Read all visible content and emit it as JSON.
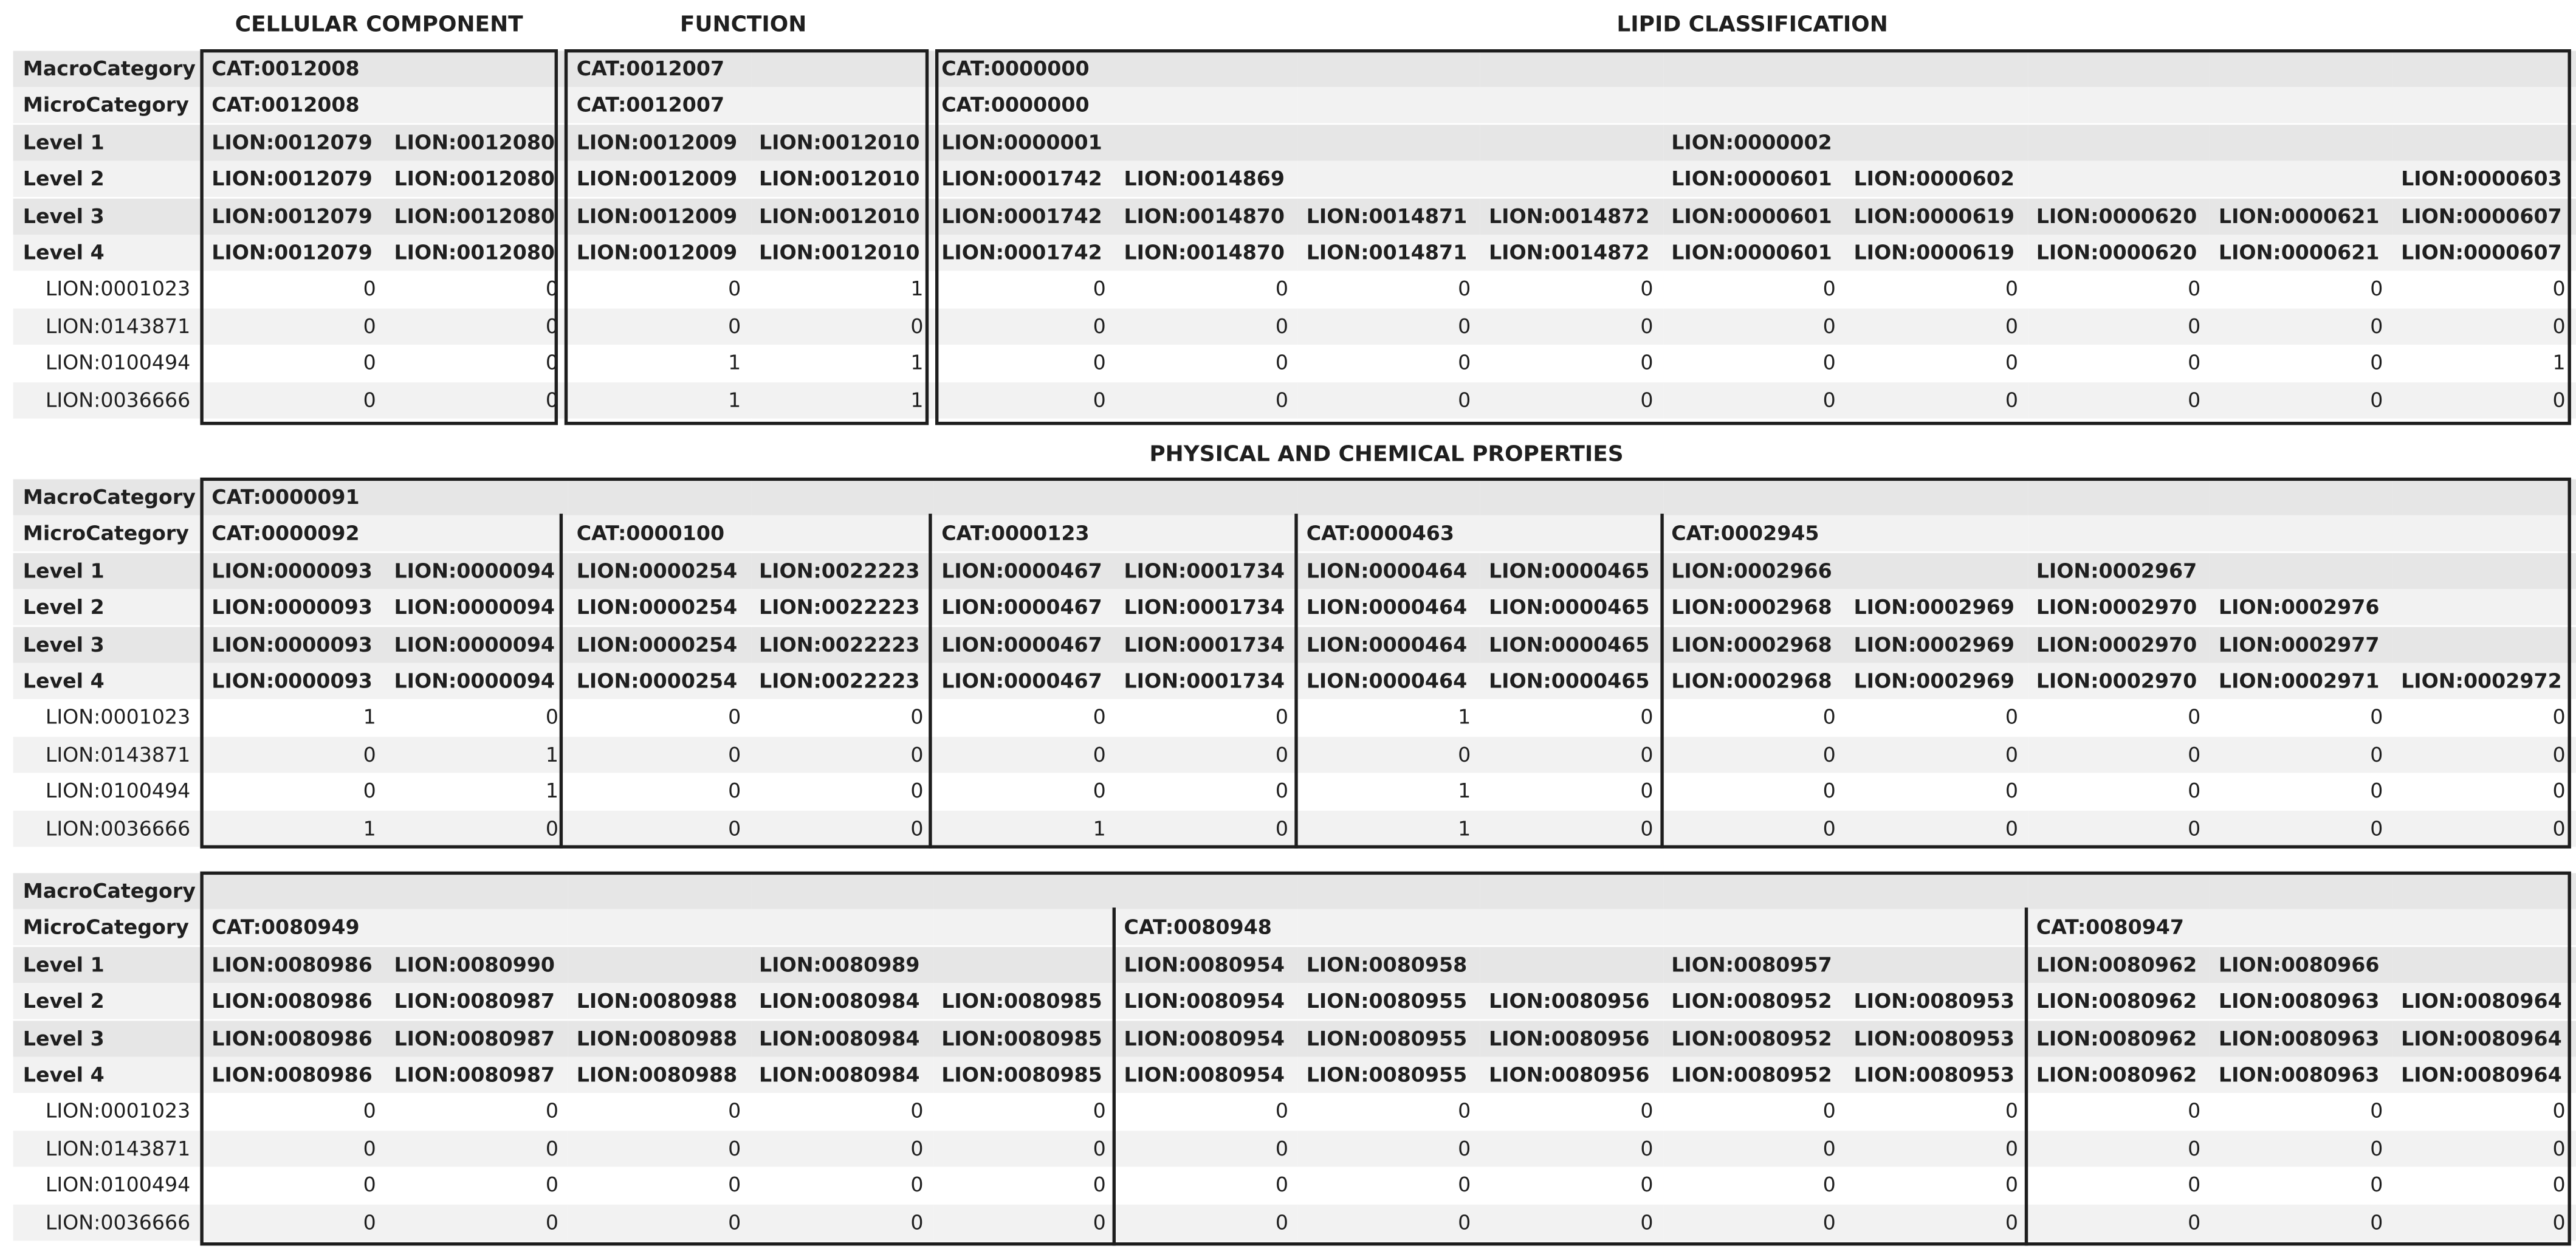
{
  "section_titles": {
    "cellular_component": "CELLULAR COMPONENT",
    "function": "FUNCTION",
    "lipid_classification": "LIPID CLASSIFICATION",
    "physical_chemical": "PHYSICAL AND CHEMICAL PROPERTIES"
  },
  "row_labels": {
    "header": [
      "MacroCategory",
      "MicroCategory",
      "Level 1",
      "Level 2",
      "Level 3",
      "Level 4"
    ],
    "lipids": [
      "LION:0001023",
      "LION:0143871",
      "LION:0100494",
      "LION:0036666"
    ]
  },
  "tables": [
    {
      "rows": [
        [
          "CAT:0012008",
          "",
          "CAT:0012007",
          "",
          "CAT:0000000",
          "",
          "",
          "",
          "",
          "",
          "",
          "",
          ""
        ],
        [
          "CAT:0012008",
          "",
          "CAT:0012007",
          "",
          "CAT:0000000",
          "",
          "",
          "",
          "",
          "",
          "",
          "",
          ""
        ],
        [
          "LION:0012079",
          "LION:0012080",
          "LION:0012009",
          "LION:0012010",
          "LION:0000001",
          "",
          "",
          "",
          "LION:0000002",
          "",
          "",
          "",
          ""
        ],
        [
          "LION:0012079",
          "LION:0012080",
          "LION:0012009",
          "LION:0012010",
          "LION:0001742",
          "LION:0014869",
          "",
          "",
          "LION:0000601",
          "LION:0000602",
          "",
          "",
          "LION:0000603"
        ],
        [
          "LION:0012079",
          "LION:0012080",
          "LION:0012009",
          "LION:0012010",
          "LION:0001742",
          "LION:0014870",
          "LION:0014871",
          "LION:0014872",
          "LION:0000601",
          "LION:0000619",
          "LION:0000620",
          "LION:0000621",
          "LION:0000607"
        ],
        [
          "LION:0012079",
          "LION:0012080",
          "LION:0012009",
          "LION:0012010",
          "LION:0001742",
          "LION:0014870",
          "LION:0014871",
          "LION:0014872",
          "LION:0000601",
          "LION:0000619",
          "LION:0000620",
          "LION:0000621",
          "LION:0000607"
        ]
      ],
      "values": [
        [
          "0",
          "0",
          "0",
          "1",
          "0",
          "0",
          "0",
          "0",
          "0",
          "0",
          "0",
          "0",
          "0"
        ],
        [
          "0",
          "0",
          "0",
          "0",
          "0",
          "0",
          "0",
          "0",
          "0",
          "0",
          "0",
          "0",
          "0"
        ],
        [
          "0",
          "0",
          "1",
          "1",
          "0",
          "0",
          "0",
          "0",
          "0",
          "0",
          "0",
          "0",
          "1"
        ],
        [
          "0",
          "0",
          "1",
          "1",
          "0",
          "0",
          "0",
          "0",
          "0",
          "0",
          "0",
          "0",
          "0"
        ]
      ]
    },
    {
      "rows": [
        [
          "CAT:0000091",
          "",
          "",
          "",
          "",
          "",
          "",
          "",
          "",
          "",
          "",
          "",
          ""
        ],
        [
          "CAT:0000092",
          "",
          "CAT:0000100",
          "",
          "CAT:0000123",
          "",
          "CAT:0000463",
          "",
          "CAT:0002945",
          "",
          "",
          "",
          ""
        ],
        [
          "LION:0000093",
          "LION:0000094",
          "LION:0000254",
          "LION:0022223",
          "LION:0000467",
          "LION:0001734",
          "LION:0000464",
          "LION:0000465",
          "LION:0002966",
          "",
          "LION:0002967",
          "",
          ""
        ],
        [
          "LION:0000093",
          "LION:0000094",
          "LION:0000254",
          "LION:0022223",
          "LION:0000467",
          "LION:0001734",
          "LION:0000464",
          "LION:0000465",
          "LION:0002968",
          "LION:0002969",
          "LION:0002970",
          "LION:0002976",
          ""
        ],
        [
          "LION:0000093",
          "LION:0000094",
          "LION:0000254",
          "LION:0022223",
          "LION:0000467",
          "LION:0001734",
          "LION:0000464",
          "LION:0000465",
          "LION:0002968",
          "LION:0002969",
          "LION:0002970",
          "LION:0002977",
          ""
        ],
        [
          "LION:0000093",
          "LION:0000094",
          "LION:0000254",
          "LION:0022223",
          "LION:0000467",
          "LION:0001734",
          "LION:0000464",
          "LION:0000465",
          "LION:0002968",
          "LION:0002969",
          "LION:0002970",
          "LION:0002971",
          "LION:0002972"
        ]
      ],
      "values": [
        [
          "1",
          "0",
          "0",
          "0",
          "0",
          "0",
          "1",
          "0",
          "0",
          "0",
          "0",
          "0",
          "0"
        ],
        [
          "0",
          "1",
          "0",
          "0",
          "0",
          "0",
          "0",
          "0",
          "0",
          "0",
          "0",
          "0",
          "0"
        ],
        [
          "0",
          "1",
          "0",
          "0",
          "0",
          "0",
          "1",
          "0",
          "0",
          "0",
          "0",
          "0",
          "0"
        ],
        [
          "1",
          "0",
          "0",
          "0",
          "1",
          "0",
          "1",
          "0",
          "0",
          "0",
          "0",
          "0",
          "0"
        ]
      ]
    },
    {
      "rows": [
        [
          "",
          "",
          "",
          "",
          "",
          "",
          "",
          "",
          "",
          "",
          "",
          "",
          ""
        ],
        [
          "CAT:0080949",
          "",
          "",
          "",
          "",
          "CAT:0080948",
          "",
          "",
          "",
          "",
          "CAT:0080947",
          "",
          ""
        ],
        [
          "LION:0080986",
          "LION:0080990",
          "",
          "LION:0080989",
          "",
          "LION:0080954",
          "LION:0080958",
          "",
          "LION:0080957",
          "",
          "LION:0080962",
          "LION:0080966",
          ""
        ],
        [
          "LION:0080986",
          "LION:0080987",
          "LION:0080988",
          "LION:0080984",
          "LION:0080985",
          "LION:0080954",
          "LION:0080955",
          "LION:0080956",
          "LION:0080952",
          "LION:0080953",
          "LION:0080962",
          "LION:0080963",
          "LION:0080964"
        ],
        [
          "LION:0080986",
          "LION:0080987",
          "LION:0080988",
          "LION:0080984",
          "LION:0080985",
          "LION:0080954",
          "LION:0080955",
          "LION:0080956",
          "LION:0080952",
          "LION:0080953",
          "LION:0080962",
          "LION:0080963",
          "LION:0080964"
        ],
        [
          "LION:0080986",
          "LION:0080987",
          "LION:0080988",
          "LION:0080984",
          "LION:0080985",
          "LION:0080954",
          "LION:0080955",
          "LION:0080956",
          "LION:0080952",
          "LION:0080953",
          "LION:0080962",
          "LION:0080963",
          "LION:0080964"
        ]
      ],
      "values": [
        [
          "0",
          "0",
          "0",
          "0",
          "0",
          "0",
          "0",
          "0",
          "0",
          "0",
          "0",
          "0",
          "0"
        ],
        [
          "0",
          "0",
          "0",
          "0",
          "0",
          "0",
          "0",
          "0",
          "0",
          "0",
          "0",
          "0",
          "0"
        ],
        [
          "0",
          "0",
          "0",
          "0",
          "0",
          "0",
          "0",
          "0",
          "0",
          "0",
          "0",
          "0",
          "0"
        ],
        [
          "0",
          "0",
          "0",
          "0",
          "0",
          "0",
          "0",
          "0",
          "0",
          "0",
          "0",
          "0",
          "0"
        ]
      ]
    }
  ],
  "colors": {
    "row_shade_dark": "#e6e6e6",
    "row_shade_light": "#f2f2f2",
    "row_white": "#ffffff",
    "border": "#1e1e1e",
    "text": "#1f1f1f"
  }
}
